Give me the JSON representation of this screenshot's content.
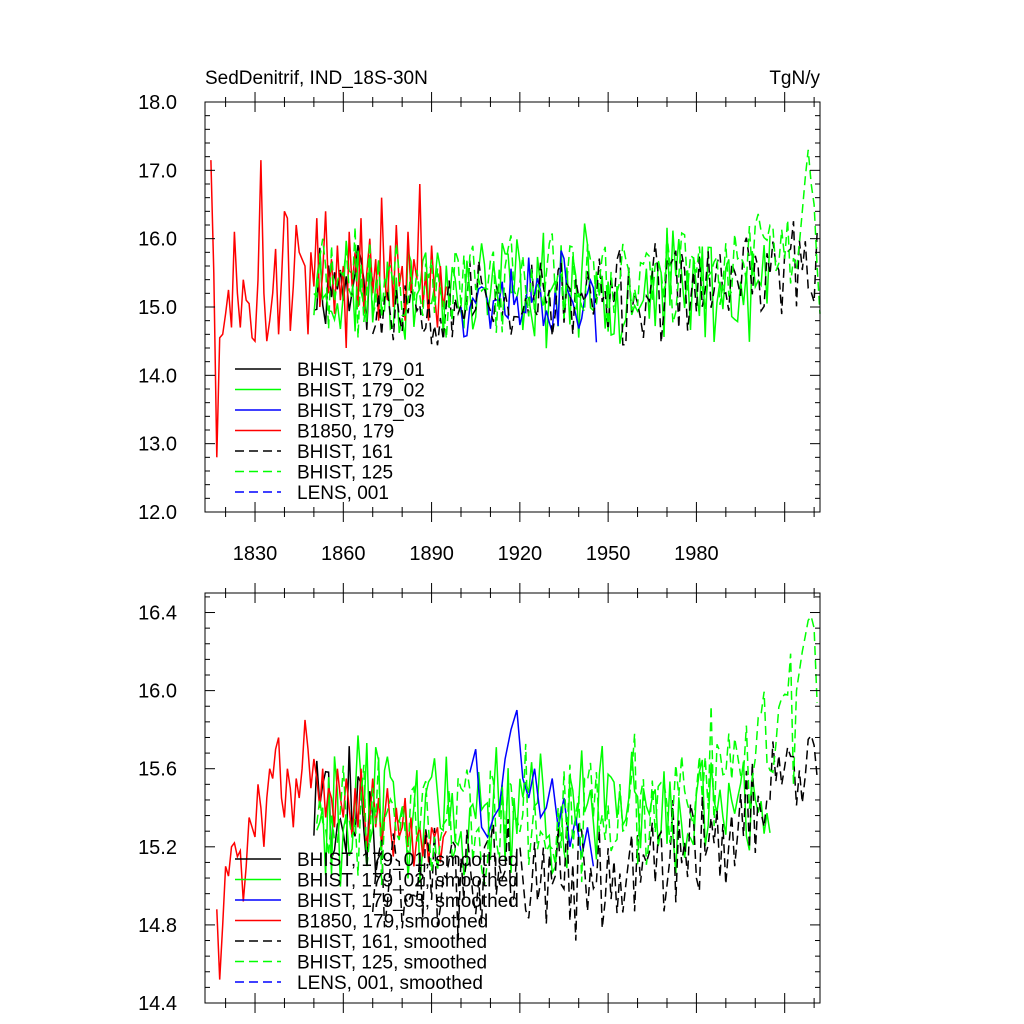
{
  "chart_data": [
    {
      "type": "line",
      "title_left": "SedDenitrif, IND_18S-30N",
      "title_right": "TgN/y",
      "xlim": [
        1813,
        2022
      ],
      "ylim": [
        12.0,
        18.0
      ],
      "xticks": [
        1830,
        1860,
        1890,
        1920,
        1950,
        1980
      ],
      "yticks": [
        "12.0",
        "13.0",
        "14.0",
        "15.0",
        "16.0",
        "17.0",
        "18.0"
      ],
      "legend_position": "bottom-left",
      "series": [
        {
          "name": "BHIST, 179_01",
          "color": "#000000",
          "dash": "solid",
          "x_start": 1850,
          "x_end": 1870,
          "seed": 11,
          "base": 15.4,
          "amp": 0.6
        },
        {
          "name": "BHIST, 179_02",
          "color": "#00ff00",
          "dash": "solid",
          "x_start": 1850,
          "x_end": 2005,
          "seed": 23,
          "base": 15.3,
          "amp": 0.65
        },
        {
          "name": "BHIST, 179_03",
          "color": "#0000ff",
          "dash": "solid",
          "x_start": 1900,
          "x_end": 1946,
          "seed": 37,
          "base": 15.2,
          "amp": 0.55
        },
        {
          "name": "B1850, 179",
          "color": "#ff0000",
          "dash": "solid",
          "x": [
            1815,
            1816,
            1817,
            1818,
            1819,
            1820,
            1821,
            1822,
            1823,
            1824,
            1825,
            1826,
            1827,
            1828,
            1829,
            1830,
            1831,
            1832,
            1833,
            1834,
            1835,
            1836,
            1837,
            1838,
            1839,
            1840,
            1841,
            1842,
            1843,
            1844,
            1845,
            1846,
            1847,
            1848,
            1849,
            1850,
            1851,
            1852,
            1853,
            1854,
            1855,
            1856,
            1857,
            1858,
            1859,
            1860,
            1861,
            1862,
            1863,
            1864,
            1865,
            1866,
            1867,
            1868,
            1869,
            1870,
            1871,
            1872,
            1873,
            1874,
            1875,
            1876,
            1877,
            1878,
            1879,
            1880,
            1881,
            1882,
            1883,
            1884,
            1885,
            1886,
            1887,
            1888,
            1889,
            1890,
            1891,
            1892,
            1893,
            1894,
            1895
          ],
          "y": [
            17.15,
            15.5,
            12.8,
            14.55,
            14.6,
            14.9,
            15.25,
            14.7,
            16.1,
            15.2,
            14.7,
            15.4,
            15.1,
            15.05,
            14.55,
            14.5,
            15.4,
            17.15,
            15.2,
            14.5,
            14.8,
            15.2,
            15.85,
            14.6,
            15.4,
            16.4,
            16.3,
            14.65,
            15.3,
            16.2,
            15.8,
            15.7,
            15.6,
            14.6,
            15.8,
            15.3,
            16.3,
            15.0,
            15.5,
            16.4,
            15.2,
            15.7,
            14.9,
            15.9,
            15.1,
            15.6,
            14.4,
            16.1,
            15.3,
            15.8,
            15.0,
            16.3,
            14.9,
            15.5,
            16.0,
            15.2,
            15.7,
            14.8,
            16.6,
            15.4,
            15.1,
            15.9,
            15.0,
            16.2,
            15.3,
            15.6,
            14.8,
            16.1,
            15.2,
            15.7,
            15.4,
            16.8,
            15.0,
            15.5,
            14.8,
            15.9,
            15.2,
            14.7,
            15.6,
            15.0,
            15.3
          ]
        },
        {
          "name": "BHIST, 161",
          "color": "#000000",
          "dash": "dashed",
          "x_start": 1870,
          "x_end": 2021,
          "seed": 53,
          "base": 15.1,
          "amp": 0.55,
          "trend": 0.55
        },
        {
          "name": "BHIST, 125",
          "color": "#00ff00",
          "dash": "dashed",
          "x_start": 1850,
          "x_end": 2022,
          "seed": 71,
          "base": 15.35,
          "amp": 0.6,
          "trend": 0.6,
          "end": [
            [
              2016,
              16.4
            ],
            [
              2017,
              16.9
            ],
            [
              2018,
              17.3
            ],
            [
              2019,
              16.8
            ],
            [
              2020,
              16.5
            ],
            [
              2021,
              15.6
            ],
            [
              2022,
              14.9
            ]
          ]
        },
        {
          "name": "LENS, 001",
          "color": "#0000ff",
          "dash": "dashed",
          "x_start": null,
          "x_end": null
        }
      ]
    },
    {
      "type": "line",
      "xlim": [
        1813,
        2022
      ],
      "ylim": [
        14.4,
        16.5
      ],
      "yticks": [
        "14.4",
        "14.8",
        "15.2",
        "15.6",
        "16.0",
        "16.4"
      ],
      "legend_position": "bottom-left",
      "series": [
        {
          "name": "BHIST, 179_01, smoothed",
          "color": "#000000",
          "dash": "solid",
          "x_start": 1850,
          "x_end": 1872,
          "seed": 101,
          "base": 15.4,
          "amp": 0.28
        },
        {
          "name": "BHIST, 179_02, smoothed",
          "color": "#00ff00",
          "dash": "solid",
          "x_start": 1851,
          "x_end": 2005,
          "seed": 113,
          "base": 15.4,
          "amp": 0.28
        },
        {
          "name": "BHIST, 179_03, smoothed",
          "color": "#0000ff",
          "dash": "solid",
          "x": [
            1903,
            1905,
            1907,
            1909,
            1911,
            1913,
            1915,
            1917,
            1919,
            1921,
            1923,
            1925,
            1927,
            1929,
            1931,
            1933,
            1935,
            1937,
            1939,
            1941,
            1943,
            1945
          ],
          "y": [
            15.58,
            15.7,
            15.3,
            15.25,
            15.35,
            15.4,
            15.65,
            15.8,
            15.9,
            15.55,
            15.45,
            15.6,
            15.35,
            15.4,
            15.55,
            15.3,
            15.45,
            15.2,
            15.35,
            15.15,
            15.3,
            15.1
          ]
        },
        {
          "name": "B1850, 179, smoothed",
          "color": "#ff0000",
          "dash": "solid",
          "x": [
            1817,
            1818,
            1819,
            1820,
            1821,
            1822,
            1823,
            1824,
            1825,
            1826,
            1827,
            1828,
            1829,
            1830,
            1831,
            1832,
            1833,
            1834,
            1835,
            1836,
            1837,
            1838,
            1839,
            1840,
            1841,
            1842,
            1843,
            1844,
            1845,
            1846,
            1847,
            1848,
            1849,
            1850,
            1851,
            1852,
            1853,
            1854,
            1855,
            1856,
            1857,
            1858,
            1859,
            1860,
            1861,
            1862,
            1863,
            1864,
            1865,
            1866,
            1867,
            1868,
            1869,
            1870,
            1871,
            1872,
            1873,
            1874,
            1875,
            1876,
            1877,
            1878,
            1879,
            1880,
            1881,
            1882,
            1883,
            1884,
            1885,
            1886,
            1887,
            1888,
            1889,
            1890,
            1891,
            1892,
            1893,
            1894,
            1895
          ],
          "y": [
            14.88,
            14.52,
            14.8,
            15.1,
            15.05,
            15.2,
            15.22,
            15.15,
            15.18,
            14.92,
            15.1,
            15.35,
            15.3,
            15.25,
            15.52,
            15.4,
            15.2,
            15.45,
            15.6,
            15.55,
            15.7,
            15.76,
            15.45,
            15.35,
            15.6,
            15.5,
            15.3,
            15.55,
            15.45,
            15.6,
            15.85,
            15.7,
            15.5,
            15.65,
            15.55,
            15.4,
            15.6,
            15.35,
            15.5,
            15.45,
            15.3,
            15.6,
            15.45,
            15.35,
            15.55,
            15.4,
            15.25,
            15.5,
            15.3,
            15.6,
            15.4,
            15.2,
            15.35,
            15.55,
            15.3,
            15.45,
            15.2,
            15.35,
            15.5,
            15.3,
            15.15,
            15.4,
            15.25,
            15.3,
            15.45,
            15.2,
            15.35,
            15.1,
            15.25,
            15.3,
            15.15,
            15.28,
            15.12,
            15.3,
            15.25,
            15.3,
            15.12,
            15.25,
            15.28
          ]
        },
        {
          "name": "BHIST, 161, smoothed",
          "color": "#000000",
          "dash": "dashed",
          "x_start": 1870,
          "x_end": 2021,
          "seed": 131,
          "base": 15.05,
          "amp": 0.24,
          "trend": 0.55,
          "end": [
            [
              2018,
              15.75
            ],
            [
              2019,
              15.77
            ],
            [
              2020,
              15.72
            ],
            [
              2021,
              15.56
            ]
          ]
        },
        {
          "name": "BHIST, 125, smoothed",
          "color": "#00ff00",
          "dash": "dashed",
          "x_start": 1851,
          "x_end": 2021,
          "seed": 149,
          "base": 15.35,
          "amp": 0.26,
          "trend": 0.55,
          "end": [
            [
              2014,
              16.0
            ],
            [
              2015,
              16.1
            ],
            [
              2016,
              16.2
            ],
            [
              2017,
              16.28
            ],
            [
              2018,
              16.36
            ],
            [
              2019,
              16.38
            ],
            [
              2020,
              16.32
            ]
          ]
        },
        {
          "name": "LENS, 001, smoothed",
          "color": "#0000ff",
          "dash": "dashed",
          "x_start": null,
          "x_end": null
        }
      ]
    }
  ]
}
